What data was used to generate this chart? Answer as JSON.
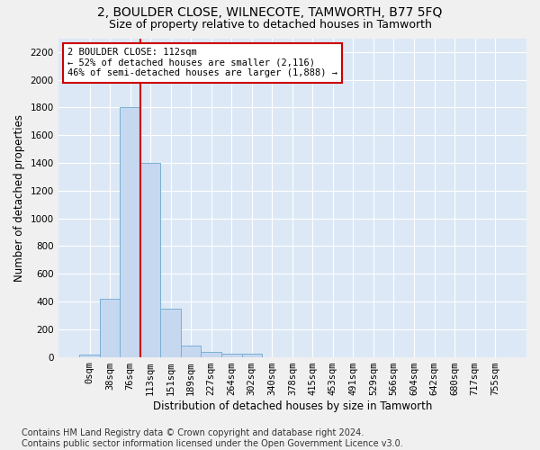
{
  "title": "2, BOULDER CLOSE, WILNECOTE, TAMWORTH, B77 5FQ",
  "subtitle": "Size of property relative to detached houses in Tamworth",
  "xlabel": "Distribution of detached houses by size in Tamworth",
  "ylabel": "Number of detached properties",
  "bar_labels": [
    "0sqm",
    "38sqm",
    "76sqm",
    "113sqm",
    "151sqm",
    "189sqm",
    "227sqm",
    "264sqm",
    "302sqm",
    "340sqm",
    "378sqm",
    "415sqm",
    "453sqm",
    "491sqm",
    "529sqm",
    "566sqm",
    "604sqm",
    "642sqm",
    "680sqm",
    "717sqm",
    "755sqm"
  ],
  "bar_values": [
    15,
    420,
    1800,
    1400,
    350,
    80,
    35,
    25,
    25,
    0,
    0,
    0,
    0,
    0,
    0,
    0,
    0,
    0,
    0,
    0,
    0
  ],
  "bar_color": "#c5d8f0",
  "bar_edgecolor": "#7bafd4",
  "vline_x": 2.5,
  "annotation_text": "2 BOULDER CLOSE: 112sqm\n← 52% of detached houses are smaller (2,116)\n46% of semi-detached houses are larger (1,888) →",
  "annotation_box_color": "#ffffff",
  "annotation_box_edgecolor": "#cc0000",
  "vline_color": "#cc0000",
  "ylim_max": 2300,
  "yticks": [
    0,
    200,
    400,
    600,
    800,
    1000,
    1200,
    1400,
    1600,
    1800,
    2000,
    2200
  ],
  "bg_color": "#dce8f5",
  "grid_color": "#ffffff",
  "footer_line1": "Contains HM Land Registry data © Crown copyright and database right 2024.",
  "footer_line2": "Contains public sector information licensed under the Open Government Licence v3.0.",
  "title_fontsize": 10,
  "subtitle_fontsize": 9,
  "xlabel_fontsize": 8.5,
  "ylabel_fontsize": 8.5,
  "tick_fontsize": 7.5,
  "annot_fontsize": 7.5,
  "footer_fontsize": 7
}
